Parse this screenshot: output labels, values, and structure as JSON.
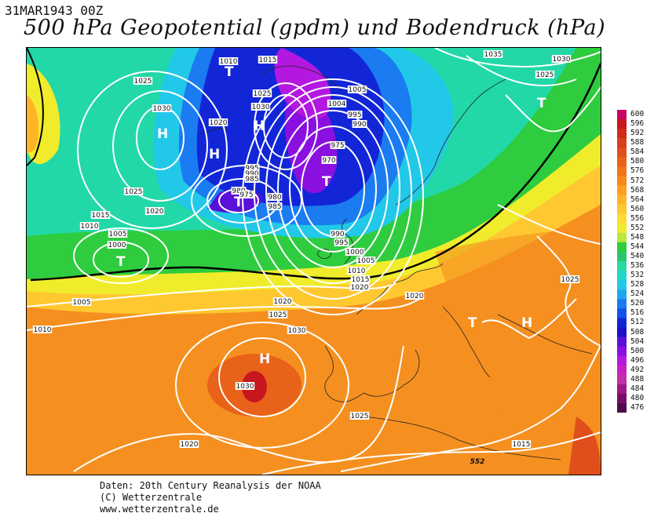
{
  "header": {
    "datetime": "31MAR1943 00Z",
    "title": "500 hPa Geopotential (gpdm) und Bodendruck (hPa)"
  },
  "credits": {
    "line1": "Daten: 20th Century Reanalysis der NOAA",
    "line2": "(C) Wetterzentrale",
    "line3": "www.wetterzentrale.de"
  },
  "colorbar": {
    "labels": [
      "600",
      "596",
      "592",
      "588",
      "584",
      "580",
      "576",
      "572",
      "568",
      "564",
      "560",
      "556",
      "552",
      "548",
      "544",
      "540",
      "536",
      "532",
      "528",
      "524",
      "520",
      "516",
      "512",
      "508",
      "504",
      "500",
      "496",
      "492",
      "488",
      "484",
      "480",
      "476"
    ],
    "colors": [
      "#cc0066",
      "#c8161e",
      "#d02a1a",
      "#d83e1c",
      "#e04e1c",
      "#e8621a",
      "#f07418",
      "#f88818",
      "#ffa020",
      "#ffb428",
      "#ffc830",
      "#ffdc34",
      "#f0ec2c",
      "#b8e838",
      "#2ecc3e",
      "#28c86a",
      "#2ad8a0",
      "#22d8c8",
      "#22c8e8",
      "#1ea8f0",
      "#1a7cf0",
      "#1450e8",
      "#1226d8",
      "#1e10c8",
      "#5a10d8",
      "#8a10e0",
      "#b418e0",
      "#c820c0",
      "#c030a8",
      "#a01888",
      "#7a0c6a",
      "#520c4e"
    ]
  },
  "map": {
    "pressure_systems": [
      {
        "kind": "high",
        "symbol": "H"
      },
      {
        "kind": "high",
        "symbol": "H"
      },
      {
        "kind": "high",
        "symbol": "H"
      },
      {
        "kind": "high",
        "symbol": "H"
      },
      {
        "kind": "high",
        "symbol": "H"
      },
      {
        "kind": "low",
        "symbol": "T"
      },
      {
        "kind": "low",
        "symbol": "T"
      },
      {
        "kind": "low",
        "symbol": "T"
      },
      {
        "kind": "low",
        "symbol": "T"
      },
      {
        "kind": "low",
        "symbol": "T"
      },
      {
        "kind": "low",
        "symbol": "T"
      }
    ],
    "isobar_labels": [
      "1010",
      "1015",
      "1025",
      "1030",
      "1020",
      "1025",
      "1030",
      "1025",
      "1020",
      "1015",
      "1010",
      "1005",
      "1000",
      "1005",
      "1004",
      "995",
      "990",
      "975",
      "970",
      "995",
      "990",
      "985",
      "980",
      "975",
      "980",
      "985",
      "990",
      "995",
      "1000",
      "1005",
      "1010",
      "1015",
      "1020",
      "1020",
      "1025",
      "1030",
      "1030",
      "1025",
      "1020",
      "1005",
      "1010",
      "1035",
      "1030",
      "1025",
      "1025",
      "1015",
      "1020",
      "552"
    ]
  }
}
